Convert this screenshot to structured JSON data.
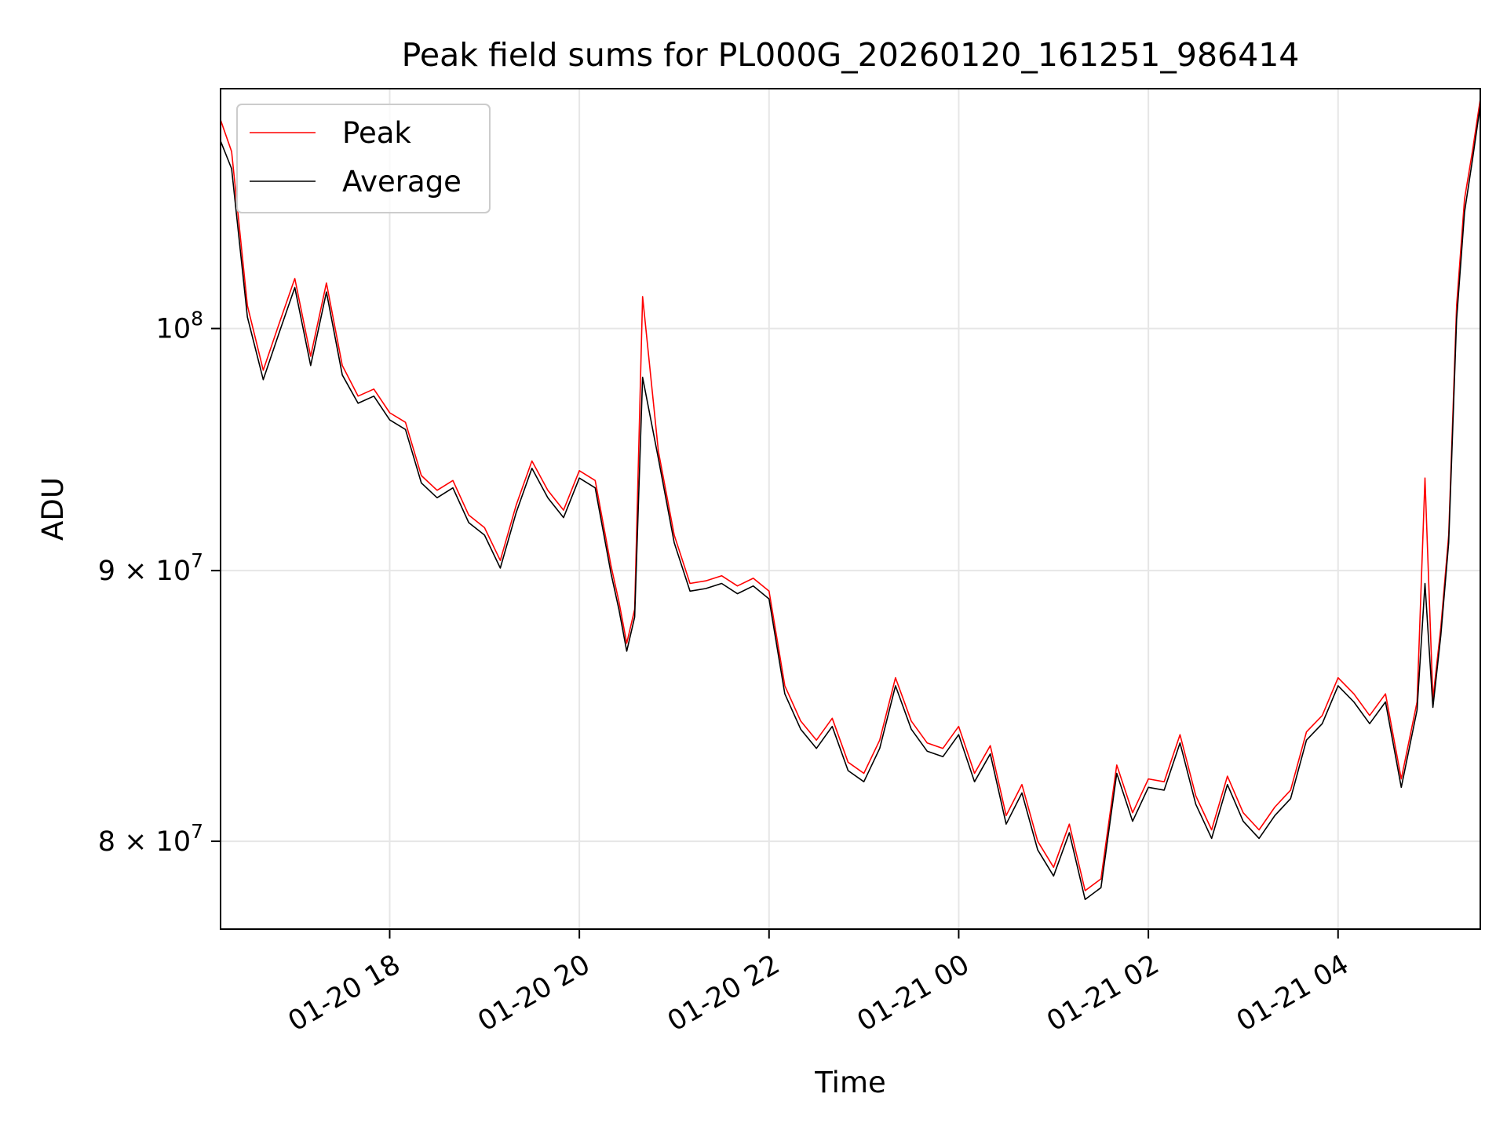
{
  "chart_data": {
    "type": "line",
    "title": "Peak field sums for PL000G_20260120_161251_986414",
    "xlabel": "Time",
    "ylabel": "ADU",
    "yscale": "log",
    "grid": true,
    "legend_position": "top-left",
    "xlim": [
      "2026-01-20 16:13",
      "2026-01-21 05:30"
    ],
    "ylim": [
      77000000,
      111000000
    ],
    "x_ticks": [
      {
        "value": "2026-01-20 18:00",
        "label": "01-20 18"
      },
      {
        "value": "2026-01-20 20:00",
        "label": "01-20 20"
      },
      {
        "value": "2026-01-20 22:00",
        "label": "01-20 22"
      },
      {
        "value": "2026-01-21 00:00",
        "label": "01-21 00"
      },
      {
        "value": "2026-01-21 02:00",
        "label": "01-21 02"
      },
      {
        "value": "2026-01-21 04:00",
        "label": "01-21 04"
      }
    ],
    "y_ticks": [
      {
        "value": 80000000,
        "base": "8 × 10",
        "exp": "7"
      },
      {
        "value": 90000000,
        "base": "9 × 10",
        "exp": "7"
      },
      {
        "value": 100000000,
        "base": "10",
        "exp": "8"
      }
    ],
    "series": [
      {
        "name": "Peak",
        "color": "#ff0000",
        "x": [
          "2026-01-20 16:13",
          "2026-01-20 16:20",
          "2026-01-20 16:30",
          "2026-01-20 16:40",
          "2026-01-20 16:50",
          "2026-01-20 17:00",
          "2026-01-20 17:10",
          "2026-01-20 17:20",
          "2026-01-20 17:30",
          "2026-01-20 17:40",
          "2026-01-20 17:50",
          "2026-01-20 18:00",
          "2026-01-20 18:10",
          "2026-01-20 18:20",
          "2026-01-20 18:30",
          "2026-01-20 18:40",
          "2026-01-20 18:50",
          "2026-01-20 19:00",
          "2026-01-20 19:10",
          "2026-01-20 19:20",
          "2026-01-20 19:30",
          "2026-01-20 19:40",
          "2026-01-20 19:50",
          "2026-01-20 20:00",
          "2026-01-20 20:10",
          "2026-01-20 20:20",
          "2026-01-20 20:25",
          "2026-01-20 20:30",
          "2026-01-20 20:35",
          "2026-01-20 20:40",
          "2026-01-20 20:50",
          "2026-01-20 21:00",
          "2026-01-20 21:10",
          "2026-01-20 21:20",
          "2026-01-20 21:30",
          "2026-01-20 21:40",
          "2026-01-20 21:50",
          "2026-01-20 22:00",
          "2026-01-20 22:10",
          "2026-01-20 22:20",
          "2026-01-20 22:30",
          "2026-01-20 22:40",
          "2026-01-20 22:50",
          "2026-01-20 23:00",
          "2026-01-20 23:10",
          "2026-01-20 23:20",
          "2026-01-20 23:30",
          "2026-01-20 23:40",
          "2026-01-20 23:50",
          "2026-01-21 00:00",
          "2026-01-21 00:10",
          "2026-01-21 00:20",
          "2026-01-21 00:30",
          "2026-01-21 00:40",
          "2026-01-21 00:50",
          "2026-01-21 01:00",
          "2026-01-21 01:10",
          "2026-01-21 01:20",
          "2026-01-21 01:30",
          "2026-01-21 01:40",
          "2026-01-21 01:50",
          "2026-01-21 02:00",
          "2026-01-21 02:10",
          "2026-01-21 02:20",
          "2026-01-21 02:30",
          "2026-01-21 02:40",
          "2026-01-21 02:50",
          "2026-01-21 03:00",
          "2026-01-21 03:10",
          "2026-01-21 03:20",
          "2026-01-21 03:30",
          "2026-01-21 03:40",
          "2026-01-21 03:50",
          "2026-01-21 04:00",
          "2026-01-21 04:10",
          "2026-01-21 04:20",
          "2026-01-21 04:30",
          "2026-01-21 04:40",
          "2026-01-21 04:50",
          "2026-01-21 04:55",
          "2026-01-21 05:00",
          "2026-01-21 05:05",
          "2026-01-21 05:10",
          "2026-01-21 05:15",
          "2026-01-21 05:20",
          "2026-01-21 05:25",
          "2026-01-21 05:30"
        ],
        "values": [
          109500000,
          108000000,
          101000000,
          98200000,
          100200000,
          102200000,
          98800000,
          102000000,
          98400000,
          97100000,
          97400000,
          96400000,
          96000000,
          93800000,
          93200000,
          93600000,
          92200000,
          91700000,
          90400000,
          92600000,
          94400000,
          93200000,
          92400000,
          94000000,
          93600000,
          90200000,
          88800000,
          87200000,
          88500000,
          101400000,
          94800000,
          91400000,
          89500000,
          89600000,
          89800000,
          89400000,
          89700000,
          89200000,
          85600000,
          84300000,
          83600000,
          84400000,
          82800000,
          82400000,
          83600000,
          85900000,
          84300000,
          83500000,
          83300000,
          84100000,
          82400000,
          83400000,
          80900000,
          82000000,
          80000000,
          79100000,
          80600000,
          78300000,
          78700000,
          82700000,
          81000000,
          82200000,
          82100000,
          83800000,
          81600000,
          80400000,
          82300000,
          81000000,
          80400000,
          81200000,
          81800000,
          83900000,
          84500000,
          85900000,
          85300000,
          84500000,
          85300000,
          82200000,
          85000000,
          93700000,
          85100000,
          87800000,
          91400000,
          101000000,
          105800000,
          108000000,
          110500000
        ]
      },
      {
        "name": "Average",
        "color": "#000000",
        "x": [
          "2026-01-20 16:13",
          "2026-01-20 16:20",
          "2026-01-20 16:30",
          "2026-01-20 16:40",
          "2026-01-20 16:50",
          "2026-01-20 17:00",
          "2026-01-20 17:10",
          "2026-01-20 17:20",
          "2026-01-20 17:30",
          "2026-01-20 17:40",
          "2026-01-20 17:50",
          "2026-01-20 18:00",
          "2026-01-20 18:10",
          "2026-01-20 18:20",
          "2026-01-20 18:30",
          "2026-01-20 18:40",
          "2026-01-20 18:50",
          "2026-01-20 19:00",
          "2026-01-20 19:10",
          "2026-01-20 19:20",
          "2026-01-20 19:30",
          "2026-01-20 19:40",
          "2026-01-20 19:50",
          "2026-01-20 20:00",
          "2026-01-20 20:10",
          "2026-01-20 20:20",
          "2026-01-20 20:25",
          "2026-01-20 20:30",
          "2026-01-20 20:35",
          "2026-01-20 20:40",
          "2026-01-20 20:50",
          "2026-01-20 21:00",
          "2026-01-20 21:10",
          "2026-01-20 21:20",
          "2026-01-20 21:30",
          "2026-01-20 21:40",
          "2026-01-20 21:50",
          "2026-01-20 22:00",
          "2026-01-20 22:10",
          "2026-01-20 22:20",
          "2026-01-20 22:30",
          "2026-01-20 22:40",
          "2026-01-20 22:50",
          "2026-01-20 23:00",
          "2026-01-20 23:10",
          "2026-01-20 23:20",
          "2026-01-20 23:30",
          "2026-01-20 23:40",
          "2026-01-20 23:50",
          "2026-01-21 00:00",
          "2026-01-21 00:10",
          "2026-01-21 00:20",
          "2026-01-21 00:30",
          "2026-01-21 00:40",
          "2026-01-21 00:50",
          "2026-01-21 01:00",
          "2026-01-21 01:10",
          "2026-01-21 01:20",
          "2026-01-21 01:30",
          "2026-01-21 01:40",
          "2026-01-21 01:50",
          "2026-01-21 02:00",
          "2026-01-21 02:10",
          "2026-01-21 02:20",
          "2026-01-21 02:30",
          "2026-01-21 02:40",
          "2026-01-21 02:50",
          "2026-01-21 03:00",
          "2026-01-21 03:10",
          "2026-01-21 03:20",
          "2026-01-21 03:30",
          "2026-01-21 03:40",
          "2026-01-21 03:50",
          "2026-01-21 04:00",
          "2026-01-21 04:10",
          "2026-01-21 04:20",
          "2026-01-21 04:30",
          "2026-01-21 04:40",
          "2026-01-21 04:50",
          "2026-01-21 04:55",
          "2026-01-21 05:00",
          "2026-01-21 05:05",
          "2026-01-21 05:10",
          "2026-01-21 05:15",
          "2026-01-21 05:20",
          "2026-01-21 05:25",
          "2026-01-21 05:30"
        ],
        "values": [
          108500000,
          107200000,
          100500000,
          97800000,
          99800000,
          101800000,
          98400000,
          101600000,
          98000000,
          96800000,
          97100000,
          96100000,
          95700000,
          93500000,
          92900000,
          93300000,
          91900000,
          91400000,
          90100000,
          92300000,
          94100000,
          92900000,
          92100000,
          93700000,
          93300000,
          89900000,
          88500000,
          86900000,
          88200000,
          97900000,
          94500000,
          91100000,
          89200000,
          89300000,
          89500000,
          89100000,
          89400000,
          88900000,
          85300000,
          84000000,
          83300000,
          84100000,
          82500000,
          82100000,
          83300000,
          85600000,
          84000000,
          83200000,
          83000000,
          83800000,
          82100000,
          83100000,
          80600000,
          81700000,
          79700000,
          78800000,
          80300000,
          78000000,
          78400000,
          82400000,
          80700000,
          81900000,
          81800000,
          83500000,
          81300000,
          80100000,
          82000000,
          80700000,
          80100000,
          80900000,
          81500000,
          83600000,
          84200000,
          85600000,
          85000000,
          84200000,
          85000000,
          81900000,
          84700000,
          89500000,
          84800000,
          87500000,
          91100000,
          100400000,
          105200000,
          107600000,
          110200000
        ]
      }
    ]
  }
}
